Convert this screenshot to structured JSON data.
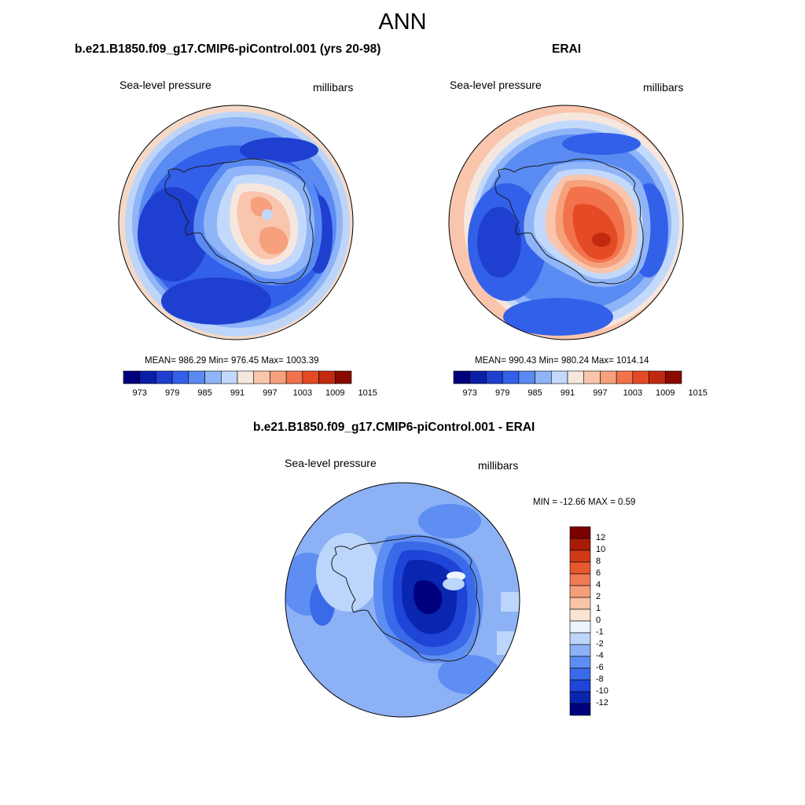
{
  "title": "ANN",
  "colors": {
    "levels13": [
      "#00007f",
      "#0a1fa8",
      "#1f3fd0",
      "#3360e8",
      "#5a8bf2",
      "#8fb4f7",
      "#c2d9fb",
      "#f6e7de",
      "#f9c5ad",
      "#f7a07c",
      "#f2724c",
      "#e44a25",
      "#c12a10",
      "#8a0a00"
    ],
    "diff_levels": [
      "#00007f",
      "#0a25b0",
      "#1f45d8",
      "#3a6ae8",
      "#5e8ef2",
      "#8cb1f5",
      "#bcd5fa",
      "#eef4fd",
      "#fbe3d5",
      "#f9c3a8",
      "#f59f7a",
      "#f07a55",
      "#e85830",
      "#d03a18",
      "#a81c06",
      "#7a0000"
    ]
  },
  "panels": [
    {
      "id": "model",
      "title": "b.e21.B1850.f09_g17.CMIP6-piControl.001 (yrs 20-98)",
      "variable": "Sea-level pressure",
      "units": "millibars",
      "stats": "MEAN= 986.29  Min= 976.45  Max= 1003.39",
      "colorbar_ticks": [
        "973",
        "979",
        "985",
        "991",
        "997",
        "1003",
        "1009",
        "1015"
      ]
    },
    {
      "id": "obs",
      "title": "ERAI",
      "variable": "Sea-level pressure",
      "units": "millibars",
      "stats": "MEAN= 990.43  Min= 980.24  Max= 1014.14",
      "colorbar_ticks": [
        "973",
        "979",
        "985",
        "991",
        "997",
        "1003",
        "1009",
        "1015"
      ]
    },
    {
      "id": "diff",
      "title": "b.e21.B1850.f09_g17.CMIP6-piControl.001 - ERAI",
      "variable": "Sea-level pressure",
      "units": "millibars",
      "stats": "MIN = -12.66 MAX =   0.59",
      "colorbar_ticks": [
        "12",
        "10",
        "8",
        "6",
        "4",
        "2",
        "1",
        "0",
        "-1",
        "-2",
        "-4",
        "-6",
        "-8",
        "-10",
        "-12"
      ]
    }
  ]
}
